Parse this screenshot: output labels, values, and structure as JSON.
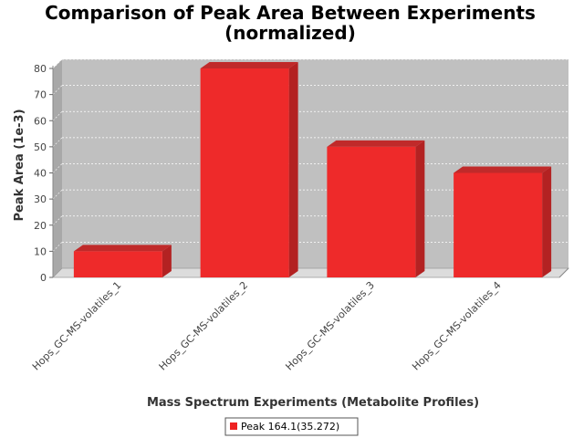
{
  "chart_data": {
    "type": "bar",
    "title": "Comparison of Peak Area Between Experiments",
    "subtitle": "(normalized)",
    "xlabel": "Mass Spectrum Experiments (Metabolite Profiles)",
    "ylabel": "Peak Area (1e-3)",
    "categories": [
      "Hops_GC-MS-volatiles_1",
      "Hops_GC-MS-volatiles_2",
      "Hops_GC-MS-volatiles_3",
      "Hops_GC-MS-volatiles_4"
    ],
    "series": [
      {
        "name": "Peak 164.1(35.272)",
        "values": [
          10,
          80,
          50,
          40
        ],
        "color": "#ee2222"
      }
    ],
    "ylim": [
      0,
      80
    ],
    "yticks": [
      0,
      10,
      20,
      30,
      40,
      50,
      60,
      70,
      80
    ],
    "grid": true,
    "legend_position": "bottom",
    "plot_background": "#c0c0c0",
    "bar_style": "3d"
  }
}
